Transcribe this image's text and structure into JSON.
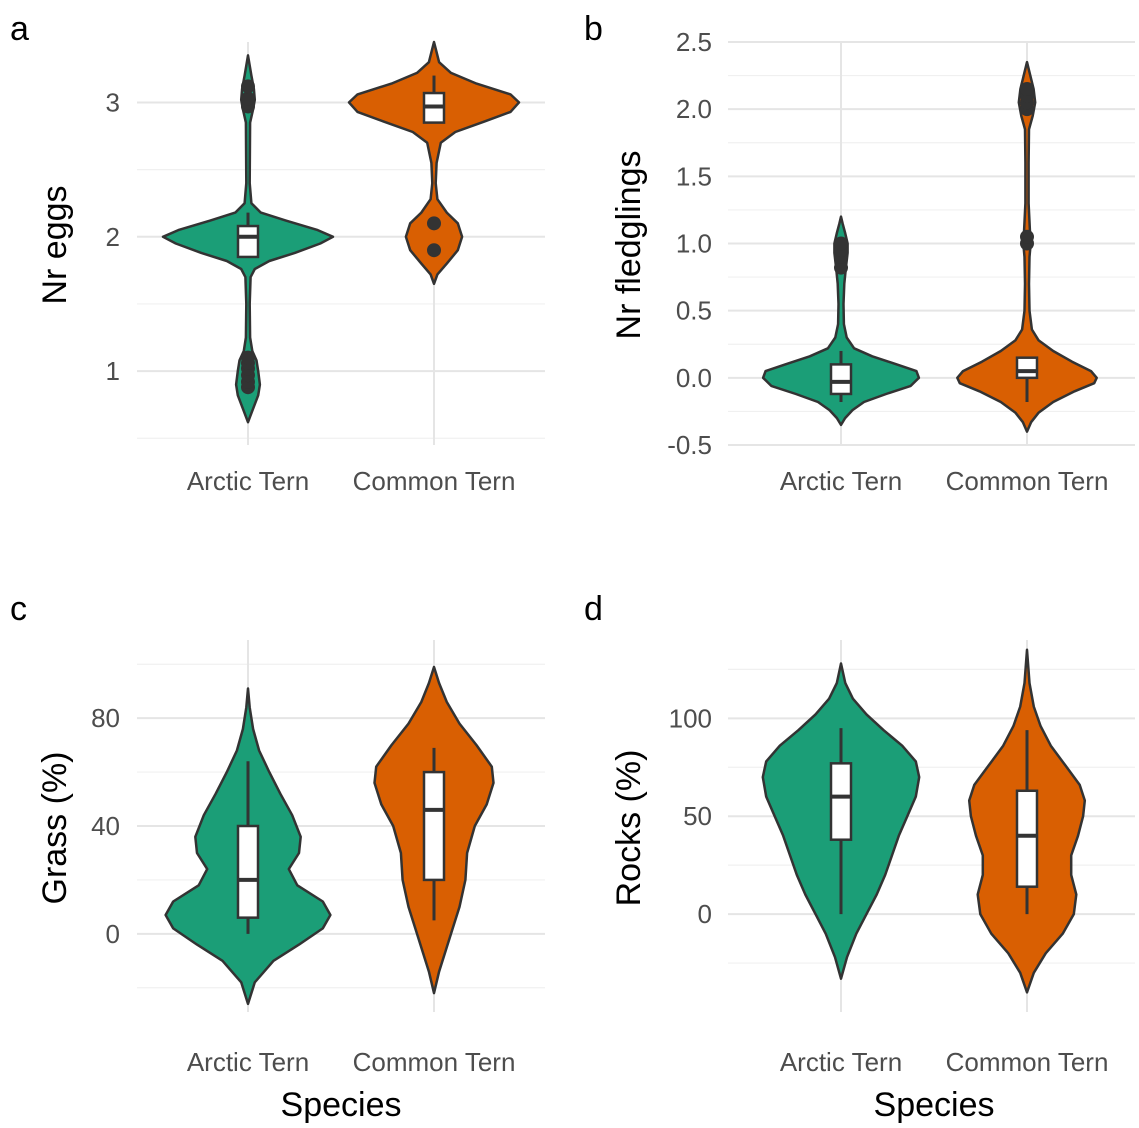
{
  "colors": {
    "arctic": "#1b9e77",
    "common": "#d95f02",
    "outline": "#333333",
    "grid_major": "#e5e5e5",
    "grid_minor": "#f0f0f0",
    "box_fill": "#ffffff"
  },
  "chart_data": [
    {
      "panel": "a",
      "type": "violin",
      "categories": [
        "Arctic Tern",
        "Common Tern"
      ],
      "xlabel": "",
      "ylabel": "Nr eggs",
      "ylim": [
        0.45,
        3.45
      ],
      "yticks": [
        1,
        2,
        3
      ],
      "ytick_labels": [
        "1",
        "2",
        "3"
      ],
      "grid": true,
      "series": [
        {
          "category": "Arctic Tern",
          "density": [
            [
              0.62,
              0
            ],
            [
              0.72,
              0.06
            ],
            [
              0.82,
              0.12
            ],
            [
              0.9,
              0.14
            ],
            [
              1.0,
              0.12
            ],
            [
              1.08,
              0.1
            ],
            [
              1.15,
              0.05
            ],
            [
              1.25,
              0.025
            ],
            [
              1.5,
              0.02
            ],
            [
              1.7,
              0.03
            ],
            [
              1.76,
              0.08
            ],
            [
              1.82,
              0.25
            ],
            [
              1.88,
              0.55
            ],
            [
              1.95,
              0.85
            ],
            [
              2.0,
              1.0
            ],
            [
              2.05,
              0.82
            ],
            [
              2.12,
              0.45
            ],
            [
              2.18,
              0.15
            ],
            [
              2.25,
              0.04
            ],
            [
              2.4,
              0.02
            ],
            [
              2.85,
              0.025
            ],
            [
              2.95,
              0.06
            ],
            [
              3.02,
              0.08
            ],
            [
              3.1,
              0.07
            ],
            [
              3.2,
              0.04
            ],
            [
              3.35,
              0
            ]
          ],
          "box": {
            "q1": 1.85,
            "median": 2.0,
            "q3": 2.08,
            "whisker_low": 1.85,
            "whisker_high": 2.18
          },
          "outliers": [
            0.88,
            0.92,
            0.97,
            1.02,
            1.06,
            1.1,
            2.97,
            3.0,
            3.03,
            3.12
          ]
        },
        {
          "category": "Common Tern",
          "density": [
            [
              1.65,
              0
            ],
            [
              1.72,
              0.04
            ],
            [
              1.8,
              0.15
            ],
            [
              1.9,
              0.28
            ],
            [
              2.0,
              0.33
            ],
            [
              2.1,
              0.28
            ],
            [
              2.18,
              0.15
            ],
            [
              2.28,
              0.04
            ],
            [
              2.4,
              0.02
            ],
            [
              2.55,
              0.03
            ],
            [
              2.7,
              0.08
            ],
            [
              2.78,
              0.25
            ],
            [
              2.86,
              0.6
            ],
            [
              2.93,
              0.9
            ],
            [
              3.0,
              1.0
            ],
            [
              3.06,
              0.9
            ],
            [
              3.14,
              0.5
            ],
            [
              3.22,
              0.2
            ],
            [
              3.3,
              0.06
            ],
            [
              3.4,
              0.02
            ],
            [
              3.45,
              0
            ]
          ],
          "box": {
            "q1": 2.85,
            "median": 2.97,
            "q3": 3.07,
            "whisker_low": 2.85,
            "whisker_high": 3.2
          },
          "outliers": [
            1.9,
            2.1
          ]
        }
      ]
    },
    {
      "panel": "b",
      "type": "violin",
      "categories": [
        "Arctic Tern",
        "Common Tern"
      ],
      "xlabel": "",
      "ylabel": "Nr fledglings",
      "ylim": [
        -0.5,
        2.5
      ],
      "yticks": [
        -0.5,
        0.0,
        0.5,
        1.0,
        1.5,
        2.0,
        2.5
      ],
      "ytick_labels": [
        "-0.5",
        "0.0",
        "0.5",
        "1.0",
        "1.5",
        "2.0",
        "2.5"
      ],
      "grid": true,
      "series": [
        {
          "category": "Arctic Tern",
          "density": [
            [
              -0.35,
              0
            ],
            [
              -0.3,
              0.05
            ],
            [
              -0.24,
              0.14
            ],
            [
              -0.18,
              0.28
            ],
            [
              -0.12,
              0.55
            ],
            [
              -0.06,
              0.85
            ],
            [
              0.0,
              0.95
            ],
            [
              0.05,
              0.92
            ],
            [
              0.1,
              0.68
            ],
            [
              0.16,
              0.38
            ],
            [
              0.22,
              0.16
            ],
            [
              0.3,
              0.07
            ],
            [
              0.4,
              0.035
            ],
            [
              0.55,
              0.03
            ],
            [
              0.7,
              0.04
            ],
            [
              0.82,
              0.06
            ],
            [
              0.93,
              0.08
            ],
            [
              1.0,
              0.08
            ],
            [
              1.08,
              0.05
            ],
            [
              1.15,
              0.02
            ],
            [
              1.2,
              0
            ]
          ],
          "box": {
            "q1": -0.12,
            "median": -0.03,
            "q3": 0.1,
            "whisker_low": -0.18,
            "whisker_high": 0.2
          },
          "outliers": [
            0.82,
            0.9,
            0.95,
            1.0
          ]
        },
        {
          "category": "Common Tern",
          "density": [
            [
              -0.4,
              0
            ],
            [
              -0.33,
              0.05
            ],
            [
              -0.26,
              0.14
            ],
            [
              -0.18,
              0.32
            ],
            [
              -0.1,
              0.58
            ],
            [
              -0.04,
              0.82
            ],
            [
              0.0,
              0.85
            ],
            [
              0.05,
              0.78
            ],
            [
              0.12,
              0.55
            ],
            [
              0.2,
              0.32
            ],
            [
              0.28,
              0.14
            ],
            [
              0.36,
              0.06
            ],
            [
              0.5,
              0.03
            ],
            [
              0.7,
              0.025
            ],
            [
              0.9,
              0.03
            ],
            [
              1.0,
              0.045
            ],
            [
              1.1,
              0.035
            ],
            [
              1.3,
              0.02
            ],
            [
              1.6,
              0.02
            ],
            [
              1.85,
              0.025
            ],
            [
              1.95,
              0.07
            ],
            [
              2.05,
              0.1
            ],
            [
              2.15,
              0.08
            ],
            [
              2.25,
              0.04
            ],
            [
              2.35,
              0
            ]
          ],
          "box": {
            "q1": 0.0,
            "median": 0.05,
            "q3": 0.15,
            "whisker_low": -0.18,
            "whisker_high": 0.15
          },
          "outliers": [
            1.0,
            1.05,
            2.0,
            2.05,
            2.1,
            2.15
          ]
        }
      ]
    },
    {
      "panel": "c",
      "type": "violin",
      "categories": [
        "Arctic Tern",
        "Common Tern"
      ],
      "xlabel": "Species",
      "ylabel": "Grass (%)",
      "ylim": [
        -29,
        109
      ],
      "yticks": [
        0,
        40,
        80
      ],
      "ytick_labels": [
        "0",
        "40",
        "80"
      ],
      "grid": true,
      "series": [
        {
          "category": "Arctic Tern",
          "density": [
            [
              -26,
              0
            ],
            [
              -18,
              0.08
            ],
            [
              -10,
              0.3
            ],
            [
              -4,
              0.6
            ],
            [
              2,
              0.88
            ],
            [
              7,
              0.97
            ],
            [
              12,
              0.88
            ],
            [
              18,
              0.58
            ],
            [
              24,
              0.48
            ],
            [
              30,
              0.6
            ],
            [
              36,
              0.62
            ],
            [
              44,
              0.52
            ],
            [
              52,
              0.38
            ],
            [
              60,
              0.25
            ],
            [
              68,
              0.13
            ],
            [
              76,
              0.06
            ],
            [
              84,
              0.02
            ],
            [
              91,
              0
            ]
          ],
          "box": {
            "q1": 6,
            "median": 20,
            "q3": 40,
            "whisker_low": 0,
            "whisker_high": 64
          },
          "outliers": []
        },
        {
          "category": "Common Tern",
          "density": [
            [
              -22,
              0
            ],
            [
              -14,
              0.06
            ],
            [
              -6,
              0.14
            ],
            [
              2,
              0.22
            ],
            [
              10,
              0.3
            ],
            [
              20,
              0.37
            ],
            [
              30,
              0.39
            ],
            [
              40,
              0.48
            ],
            [
              48,
              0.62
            ],
            [
              56,
              0.7
            ],
            [
              62,
              0.68
            ],
            [
              70,
              0.5
            ],
            [
              78,
              0.3
            ],
            [
              86,
              0.15
            ],
            [
              93,
              0.06
            ],
            [
              99,
              0
            ]
          ],
          "box": {
            "q1": 20,
            "median": 46,
            "q3": 60,
            "whisker_low": 5,
            "whisker_high": 69
          },
          "outliers": []
        }
      ]
    },
    {
      "panel": "d",
      "type": "violin",
      "categories": [
        "Arctic Tern",
        "Common Tern"
      ],
      "xlabel": "Species",
      "ylabel": "Rocks (%)",
      "ylim": [
        -50,
        140
      ],
      "yticks": [
        0,
        50,
        100
      ],
      "ytick_labels": [
        "0",
        "50",
        "100"
      ],
      "grid": true,
      "series": [
        {
          "category": "Arctic Tern",
          "density": [
            [
              -33,
              0
            ],
            [
              -22,
              0.07
            ],
            [
              -10,
              0.18
            ],
            [
              0,
              0.3
            ],
            [
              10,
              0.42
            ],
            [
              20,
              0.52
            ],
            [
              30,
              0.6
            ],
            [
              40,
              0.68
            ],
            [
              50,
              0.78
            ],
            [
              60,
              0.88
            ],
            [
              70,
              0.92
            ],
            [
              78,
              0.88
            ],
            [
              86,
              0.72
            ],
            [
              94,
              0.5
            ],
            [
              102,
              0.3
            ],
            [
              110,
              0.14
            ],
            [
              118,
              0.05
            ],
            [
              128,
              0
            ]
          ],
          "box": {
            "q1": 38,
            "median": 60,
            "q3": 77,
            "whisker_low": 0,
            "whisker_high": 95
          },
          "outliers": []
        },
        {
          "category": "Common Tern",
          "density": [
            [
              -40,
              0
            ],
            [
              -30,
              0.08
            ],
            [
              -20,
              0.22
            ],
            [
              -10,
              0.42
            ],
            [
              0,
              0.55
            ],
            [
              10,
              0.58
            ],
            [
              20,
              0.52
            ],
            [
              30,
              0.52
            ],
            [
              40,
              0.6
            ],
            [
              50,
              0.66
            ],
            [
              58,
              0.68
            ],
            [
              66,
              0.62
            ],
            [
              76,
              0.45
            ],
            [
              86,
              0.28
            ],
            [
              96,
              0.16
            ],
            [
              106,
              0.08
            ],
            [
              118,
              0.03
            ],
            [
              135,
              0
            ]
          ],
          "box": {
            "q1": 14,
            "median": 40,
            "q3": 63,
            "whisker_low": 0,
            "whisker_high": 94
          },
          "outliers": []
        }
      ]
    }
  ]
}
